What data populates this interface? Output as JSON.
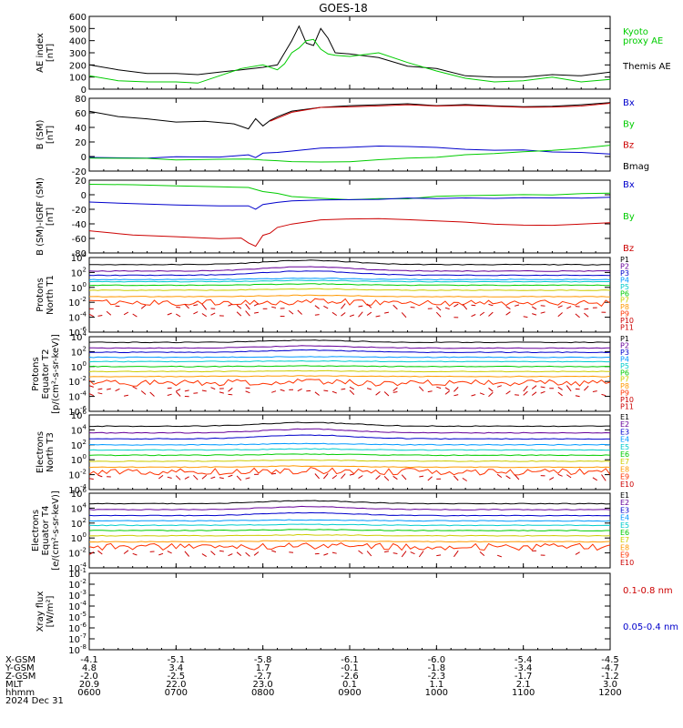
{
  "title": "GOES-18",
  "chart_data": {
    "type": "line",
    "x_ticks": [
      "0600",
      "0700",
      "0800",
      "0900",
      "1000",
      "1100",
      "1200"
    ],
    "x_range": [
      "0600",
      "1200"
    ],
    "date": "2024 Dec 31",
    "panels": [
      {
        "ylabel": [
          "AE index",
          "[nT]"
        ],
        "scale": "linear",
        "ylim": [
          0,
          600
        ],
        "y_ticks": [
          "0",
          "100",
          "200",
          "300",
          "400",
          "500",
          "600"
        ],
        "legend": [
          {
            "text": "Kyoto",
            "color": "#00cc00"
          },
          {
            "text": "proxy AE",
            "color": "#00cc00"
          },
          {
            "text": "Themis AE",
            "color": "#000000"
          }
        ],
        "series": [
          {
            "name": "Themis AE",
            "color": "#000000",
            "x": [
              "0600",
              "0620",
              "0640",
              "0700",
              "0715",
              "0730",
              "0745",
              "0800",
              "0810",
              "0815",
              "0820",
              "0825",
              "0830",
              "0835",
              "0840",
              "0845",
              "0850",
              "0900",
              "0920",
              "0940",
              "1000",
              "1020",
              "1040",
              "1100",
              "1120",
              "1140",
              "1200"
            ],
            "y": [
              200,
              160,
              130,
              130,
              120,
              140,
              160,
              180,
              200,
              300,
              400,
              520,
              380,
              360,
              500,
              420,
              300,
              290,
              260,
              190,
              170,
              110,
              100,
              100,
              120,
              110,
              140
            ]
          },
          {
            "name": "Kyoto proxy AE",
            "color": "#00cc00",
            "x": [
              "0600",
              "0620",
              "0640",
              "0700",
              "0715",
              "0730",
              "0745",
              "0800",
              "0810",
              "0815",
              "0820",
              "0825",
              "0830",
              "0835",
              "0840",
              "0845",
              "0850",
              "0900",
              "0920",
              "0940",
              "1000",
              "1020",
              "1040",
              "1100",
              "1120",
              "1140",
              "1200"
            ],
            "y": [
              110,
              70,
              60,
              60,
              50,
              110,
              170,
              200,
              160,
              210,
              300,
              340,
              400,
              410,
              330,
              290,
              280,
              270,
              300,
              220,
              150,
              90,
              60,
              70,
              100,
              60,
              80
            ]
          }
        ]
      },
      {
        "ylabel": [
          "B (SM)",
          "[nT]"
        ],
        "scale": "linear",
        "ylim": [
          -20,
          80
        ],
        "y_ticks": [
          "-20",
          "0",
          "20",
          "40",
          "60",
          "80"
        ],
        "legend": [
          {
            "text": "Bx",
            "color": "#0000cc"
          },
          {
            "text": "By",
            "color": "#00cc00"
          },
          {
            "text": "Bz",
            "color": "#cc0000"
          },
          {
            "text": "Bmag",
            "color": "#000000"
          }
        ],
        "series": [
          {
            "name": "Bmag",
            "color": "#000000",
            "x": [
              "0600",
              "0620",
              "0640",
              "0700",
              "0720",
              "0740",
              "0750",
              "0755",
              "0800",
              "0805",
              "0810",
              "0820",
              "0840",
              "0900",
              "0920",
              "0940",
              "1000",
              "1020",
              "1040",
              "1100",
              "1120",
              "1140",
              "1200"
            ],
            "y": [
              63,
              55,
              52,
              48,
              48,
              45,
              38,
              52,
              42,
              50,
              55,
              62,
              68,
              70,
              71,
              72,
              70,
              72,
              70,
              68,
              69,
              71,
              74
            ]
          },
          {
            "name": "Bz",
            "color": "#cc0000",
            "x": [
              "0805",
              "0820",
              "0840",
              "0900",
              "0920",
              "0940",
              "1000",
              "1020",
              "1040",
              "1100",
              "1120",
              "1140",
              "1200"
            ],
            "y": [
              49,
              61,
              67,
              69,
              70,
              71,
              69,
              71,
              69,
              67,
              68,
              70,
              73
            ]
          },
          {
            "name": "Bx",
            "color": "#0000cc",
            "x": [
              "0600",
              "0640",
              "0700",
              "0730",
              "0750",
              "0755",
              "0800",
              "0810",
              "0820",
              "0840",
              "0900",
              "0920",
              "0940",
              "1000",
              "1020",
              "1040",
              "1100",
              "1120",
              "1140",
              "1200"
            ],
            "y": [
              -2,
              -2,
              -1,
              0,
              2,
              -2,
              4,
              6,
              8,
              11,
              12,
              14,
              13,
              12,
              10,
              9,
              9,
              7,
              5,
              3
            ]
          },
          {
            "name": "By",
            "color": "#00cc00",
            "x": [
              "0600",
              "0640",
              "0700",
              "0730",
              "0750",
              "0800",
              "0810",
              "0820",
              "0840",
              "0900",
              "0920",
              "0940",
              "1000",
              "1020",
              "1040",
              "1100",
              "1120",
              "1140",
              "1200"
            ],
            "y": [
              -2,
              -3,
              -4,
              -4,
              -4,
              -5,
              -6,
              -7,
              -8,
              -7,
              -5,
              -3,
              -1,
              2,
              4,
              7,
              9,
              12,
              15
            ]
          }
        ]
      },
      {
        "ylabel": [
          "B (SM)-IGRF (SM)",
          "[nT]"
        ],
        "scale": "linear",
        "ylim": [
          -80,
          20
        ],
        "y_ticks": [
          "-80",
          "-60",
          "-40",
          "-20",
          "0",
          "20"
        ],
        "legend": [
          {
            "text": "Bx",
            "color": "#0000cc"
          },
          {
            "text": "By",
            "color": "#00cc00"
          },
          {
            "text": "Bz",
            "color": "#cc0000"
          }
        ],
        "series": [
          {
            "name": "By",
            "color": "#00cc00",
            "x": [
              "0600",
              "0630",
              "0700",
              "0730",
              "0750",
              "0800",
              "0810",
              "0820",
              "0840",
              "0900",
              "0920",
              "0940",
              "1000",
              "1020",
              "1040",
              "1100",
              "1120",
              "1140",
              "1200"
            ],
            "y": [
              15,
              14,
              12,
              11,
              10,
              5,
              2,
              -2,
              -5,
              -7,
              -6,
              -5,
              -3,
              -2,
              -1,
              0,
              0,
              1,
              2
            ]
          },
          {
            "name": "Bx",
            "color": "#0000cc",
            "x": [
              "0600",
              "0630",
              "0700",
              "0730",
              "0750",
              "0755",
              "0800",
              "0810",
              "0820",
              "0840",
              "0900",
              "0920",
              "0940",
              "1000",
              "1020",
              "1040",
              "1100",
              "1120",
              "1140",
              "1200"
            ],
            "y": [
              -10,
              -12,
              -14,
              -15,
              -16,
              -20,
              -14,
              -10,
              -8,
              -8,
              -7,
              -6,
              -5,
              -5,
              -5,
              -5,
              -4,
              -4,
              -4,
              -4
            ]
          },
          {
            "name": "Bz",
            "color": "#cc0000",
            "x": [
              "0600",
              "0630",
              "0700",
              "0730",
              "0745",
              "0750",
              "0755",
              "0800",
              "0805",
              "0810",
              "0820",
              "0840",
              "0900",
              "0920",
              "0940",
              "1000",
              "1020",
              "1040",
              "1100",
              "1120",
              "1140",
              "1200"
            ],
            "y": [
              -50,
              -55,
              -58,
              -60,
              -60,
              -66,
              -70,
              -55,
              -52,
              -45,
              -40,
              -35,
              -33,
              -33,
              -35,
              -36,
              -38,
              -40,
              -42,
              -42,
              -40,
              -38
            ]
          }
        ]
      },
      {
        "ylabel": [
          "Protons",
          "North T1"
        ],
        "scale": "log",
        "ylim": [
          -6.5,
          4
        ],
        "y_ticks": [
          "10^4",
          "10^2",
          "10^0",
          "10^-2",
          "10^-4",
          "10^-6"
        ],
        "legend": [
          {
            "text": "P1",
            "color": "#000000"
          },
          {
            "text": "P2",
            "color": "#660099"
          },
          {
            "text": "P3",
            "color": "#0000cc"
          },
          {
            "text": "P4",
            "color": "#0099ff"
          },
          {
            "text": "P5",
            "color": "#00cccc"
          },
          {
            "text": "P6",
            "color": "#00cc00"
          },
          {
            "text": "P7",
            "color": "#cccc00"
          },
          {
            "text": "P8",
            "color": "#ff9900"
          },
          {
            "text": "P9",
            "color": "#ff3300"
          },
          {
            "text": "P10",
            "color": "#cc0000"
          },
          {
            "text": "P11",
            "color": "#cc0000"
          }
        ],
        "channel_levels": [
          3.0,
          2.1,
          1.5,
          0.9,
          0.6,
          0.1,
          -0.6,
          -1.5,
          -2.4,
          -3.0,
          -4.0
        ],
        "bump": 0.6,
        "dashed_from": 9
      },
      {
        "ylabel": [
          "Protons",
          "Equator T2",
          "[p/(cm²-s-sr-keV)]"
        ],
        "scale": "log",
        "ylim": [
          -6.5,
          4
        ],
        "y_ticks": [
          "10^4",
          "10^2",
          "10^0",
          "10^-2",
          "10^-4",
          "10^-6"
        ],
        "legend": [
          {
            "text": "P1",
            "color": "#000000"
          },
          {
            "text": "P2",
            "color": "#660099"
          },
          {
            "text": "P3",
            "color": "#0000cc"
          },
          {
            "text": "P4",
            "color": "#0099ff"
          },
          {
            "text": "P5",
            "color": "#00cccc"
          },
          {
            "text": "P6",
            "color": "#00cc00"
          },
          {
            "text": "P7",
            "color": "#cccc00"
          },
          {
            "text": "P8",
            "color": "#ff9900"
          },
          {
            "text": "P9",
            "color": "#ff3300"
          },
          {
            "text": "P10",
            "color": "#cc0000"
          },
          {
            "text": "P11",
            "color": "#cc0000"
          }
        ],
        "channel_levels": [
          3.2,
          2.4,
          1.8,
          1.1,
          0.5,
          -0.2,
          -0.9,
          -1.6,
          -2.5,
          -3.3,
          -4.0
        ],
        "bump": 0.3,
        "dashed_from": 9
      },
      {
        "ylabel": [
          "Electrons",
          "North T3"
        ],
        "scale": "log",
        "ylim": [
          -4,
          6
        ],
        "y_ticks": [
          "10^6",
          "10^4",
          "10^2",
          "10^0",
          "10^-2",
          "10^-4"
        ],
        "legend": [
          {
            "text": "E1",
            "color": "#000000"
          },
          {
            "text": "E2",
            "color": "#660099"
          },
          {
            "text": "E3",
            "color": "#0000cc"
          },
          {
            "text": "E4",
            "color": "#0099ff"
          },
          {
            "text": "E5",
            "color": "#00cccc"
          },
          {
            "text": "E6",
            "color": "#00cc00"
          },
          {
            "text": "E7",
            "color": "#cccc00"
          },
          {
            "text": "E8",
            "color": "#ff9900"
          },
          {
            "text": "E9",
            "color": "#ff3300"
          },
          {
            "text": "E10",
            "color": "#cc0000"
          }
        ],
        "channel_levels": [
          4.5,
          3.6,
          2.8,
          2.0,
          1.3,
          0.6,
          -0.2,
          -1.0,
          -1.6,
          -2.4
        ],
        "bump": 0.5,
        "dashed_from": 9
      },
      {
        "ylabel": [
          "Electrons",
          "Equator T4",
          "[e/(cm²-s-sr-keV)]"
        ],
        "scale": "log",
        "ylim": [
          -4,
          6
        ],
        "y_ticks": [
          "10^6",
          "10^4",
          "10^2",
          "10^0",
          "10^-2",
          "10^-4"
        ],
        "legend": [
          {
            "text": "E1",
            "color": "#000000"
          },
          {
            "text": "E2",
            "color": "#660099"
          },
          {
            "text": "E3",
            "color": "#0000cc"
          },
          {
            "text": "E4",
            "color": "#0099ff"
          },
          {
            "text": "E5",
            "color": "#00cccc"
          },
          {
            "text": "E6",
            "color": "#00cc00"
          },
          {
            "text": "E7",
            "color": "#cccc00"
          },
          {
            "text": "E8",
            "color": "#ff9900"
          },
          {
            "text": "E9",
            "color": "#ff3300"
          },
          {
            "text": "E10",
            "color": "#cc0000"
          }
        ],
        "channel_levels": [
          4.6,
          3.8,
          3.0,
          2.3,
          1.7,
          1.0,
          0.3,
          -0.5,
          -1.2,
          -2.1
        ],
        "bump": 0.4,
        "dashed_from": 9
      },
      {
        "ylabel": [
          "Xray flux",
          "[W/m²]"
        ],
        "scale": "log",
        "ylim": [
          -8,
          -1
        ],
        "y_ticks": [
          "10^-1",
          "10^-2",
          "10^-3",
          "10^-4",
          "10^-5",
          "10^-6",
          "10^-7",
          "10^-8"
        ],
        "legend": [
          {
            "text": "0.1-0.8 nm",
            "color": "#cc0000"
          },
          {
            "text": "0.05-0.4 nm",
            "color": "#0000cc"
          }
        ],
        "series": []
      }
    ],
    "footer": {
      "rows": [
        {
          "label": "X-GSM",
          "values": [
            "-4.1",
            "-5.1",
            "-5.8",
            "-6.1",
            "-6.0",
            "-5.4",
            "-4.5"
          ]
        },
        {
          "label": "Y-GSM",
          "values": [
            "4.8",
            "3.4",
            "1.7",
            "-0.1",
            "-1.8",
            "-3.4",
            "-4.7"
          ]
        },
        {
          "label": "Z-GSM",
          "values": [
            "-2.0",
            "-2.5",
            "-2.7",
            "-2.6",
            "-2.3",
            "-1.7",
            "-1.2"
          ]
        },
        {
          "label": "MLT",
          "values": [
            "20.9",
            "22.0",
            "23.0",
            "0.1",
            "1.1",
            "2.1",
            "3.0"
          ]
        },
        {
          "label": "hhmm",
          "values": [
            "0600",
            "0700",
            "0800",
            "0900",
            "1000",
            "1100",
            "1200"
          ]
        }
      ],
      "date": "2024 Dec 31"
    }
  }
}
